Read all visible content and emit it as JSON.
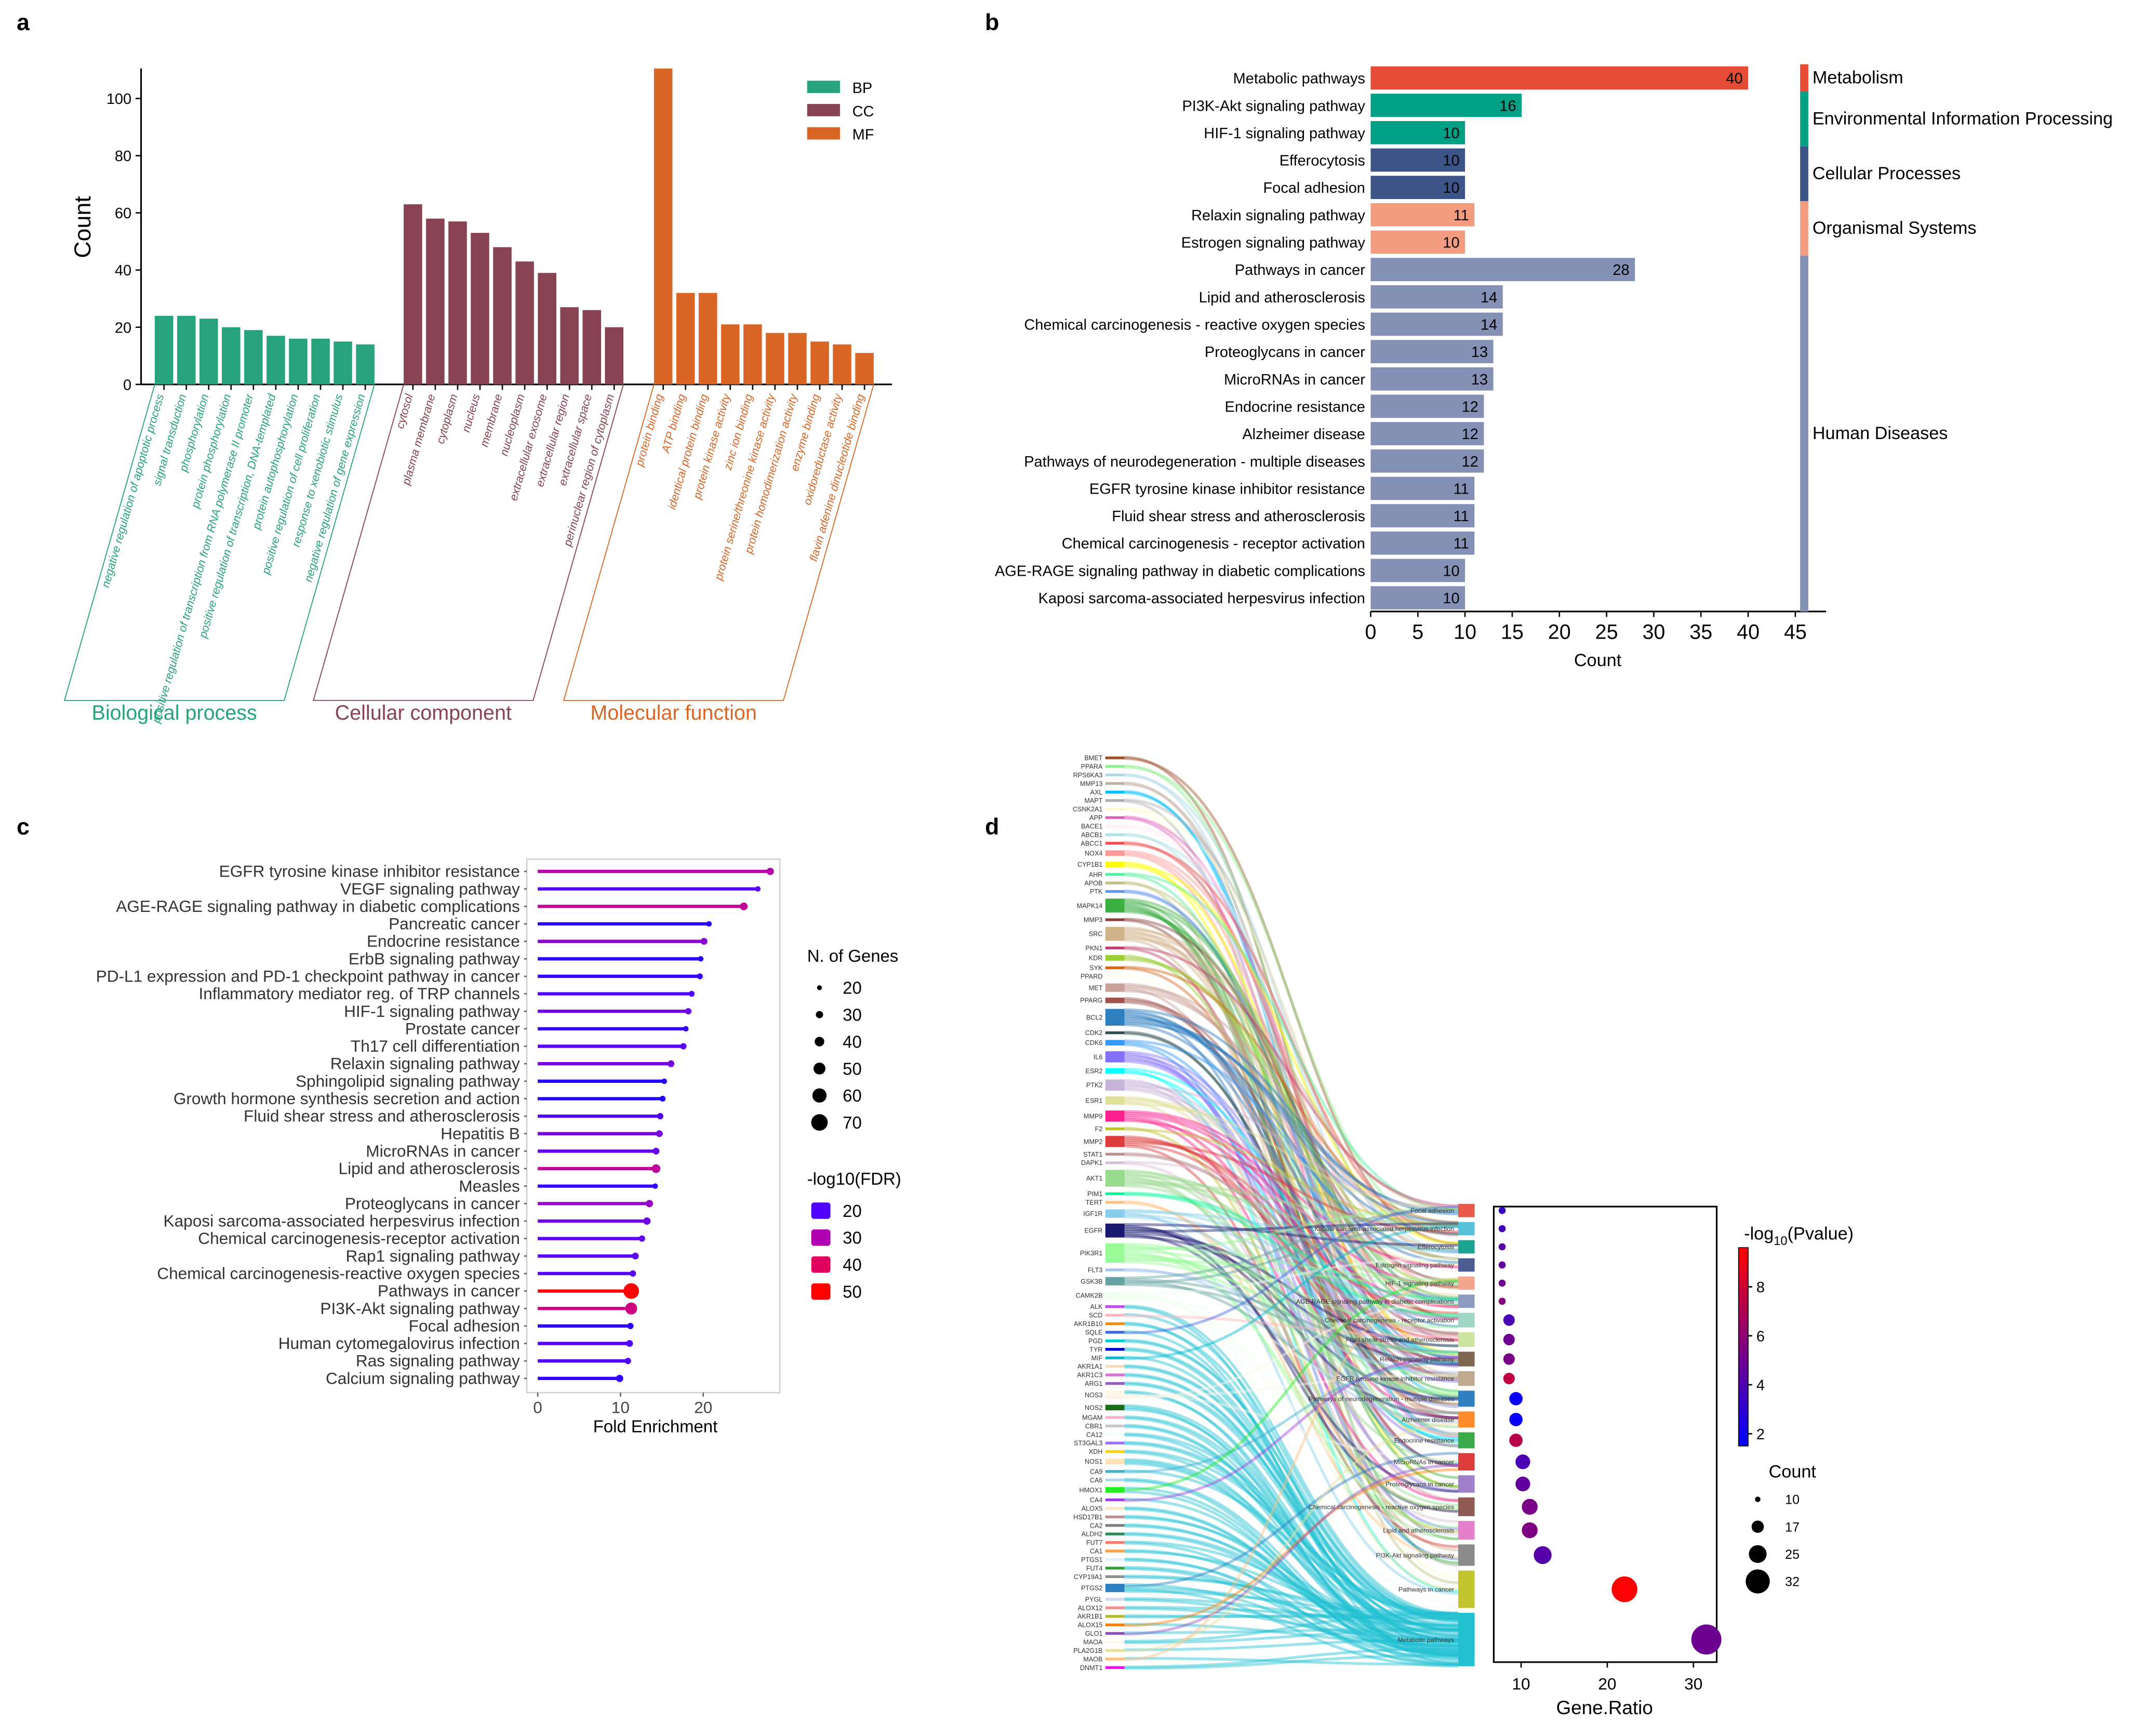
{
  "panel_labels": {
    "a": "a",
    "b": "b",
    "c": "c",
    "d": "d"
  },
  "chart_data": [
    {
      "id": "a",
      "type": "bar",
      "ylabel": "Count",
      "ylim": [
        0,
        110
      ],
      "yticks": [
        0,
        20,
        40,
        60,
        80,
        100
      ],
      "legend": [
        {
          "name": "BP",
          "color": "#26a37c"
        },
        {
          "name": "CC",
          "color": "#874352"
        },
        {
          "name": "MF",
          "color": "#d96626"
        }
      ],
      "legend_position": "top-right",
      "groups": [
        {
          "name": "Biological process",
          "key": "BP",
          "color": "#26a37c",
          "categories": [
            "negative regulation of apoptotic process",
            "signal transduction",
            "phosphorylation",
            "protein phosphorylation",
            "positive regulation of transcription from RNA polymerase II promoter",
            "positive regulation of transcription, DNA-templated",
            "protein autophosphorylation",
            "positive regulation of cell proliferation",
            "response to xenobiotic stimulus",
            "negative regulation of gene expression"
          ],
          "values": [
            24,
            24,
            23,
            20,
            19,
            17,
            16,
            16,
            15,
            14
          ]
        },
        {
          "name": "Cellular component",
          "key": "CC",
          "color": "#874352",
          "categories": [
            "cytosol",
            "plasma membrane",
            "cytoplasm",
            "nucleus",
            "membrane",
            "nucleoplasm",
            "extracellular exosome",
            "extracellular region",
            "extracellular space",
            "perinuclear region of cytoplasm"
          ],
          "values": [
            63,
            58,
            57,
            53,
            48,
            43,
            39,
            27,
            26,
            20
          ]
        },
        {
          "name": "Molecular function",
          "key": "MF",
          "color": "#d96626",
          "categories": [
            "protein binding",
            "ATP binding",
            "identical protein binding",
            "protein kinase activity",
            "zinc ion binding",
            "protein serine/threonine kinase activity",
            "protein homodimerization activity",
            "enzyme binding",
            "oxidoreductase activity",
            "flavin adenine dinucleotide binding"
          ],
          "values": [
            111,
            32,
            32,
            21,
            21,
            18,
            18,
            15,
            14,
            11
          ]
        }
      ]
    },
    {
      "id": "b",
      "type": "bar",
      "orientation": "horizontal",
      "xlabel": "Count",
      "xlim": [
        0,
        45
      ],
      "xticks": [
        0,
        5,
        10,
        15,
        20,
        25,
        30,
        35,
        40,
        45
      ],
      "categories": [
        "Metabolic pathways",
        "PI3K-Akt signaling pathway",
        "HIF-1 signaling pathway",
        "Efferocytosis",
        "Focal adhesion",
        "Relaxin signaling pathway",
        "Estrogen signaling pathway",
        "Pathways in cancer",
        "Lipid and atherosclerosis",
        "Chemical carcinogenesis - reactive oxygen species",
        "Proteoglycans in cancer",
        "MicroRNAs in cancer",
        "Endocrine resistance",
        "Alzheimer disease",
        "Pathways of neurodegeneration - multiple diseases",
        "EGFR tyrosine kinase inhibitor resistance",
        "Fluid shear stress and atherosclerosis",
        "Chemical carcinogenesis - receptor activation",
        "AGE-RAGE signaling pathway in diabetic complications",
        "Kaposi sarcoma-associated herpesvirus infection"
      ],
      "values": [
        40,
        16,
        10,
        10,
        10,
        11,
        10,
        28,
        14,
        14,
        13,
        13,
        12,
        12,
        12,
        11,
        11,
        11,
        10,
        10
      ],
      "classes": [
        {
          "name": "Metabolism",
          "start": 0,
          "count": 1,
          "color": "#e64b35"
        },
        {
          "name": "Environmental Information Processing",
          "start": 1,
          "count": 2,
          "color": "#00a087"
        },
        {
          "name": "Cellular Processes",
          "start": 3,
          "count": 2,
          "color": "#3c5488"
        },
        {
          "name": "Organismal Systems",
          "start": 5,
          "count": 2,
          "color": "#f39b7f"
        },
        {
          "name": "Human Diseases",
          "start": 7,
          "count": 13,
          "color": "#8491b4"
        }
      ]
    },
    {
      "id": "c",
      "type": "scatter",
      "subtype": "lollipop",
      "xlabel": "Fold Enrichment",
      "xlim": [
        0,
        29
      ],
      "xticks": [
        0,
        10,
        20
      ],
      "categories": [
        "EGFR tyrosine kinase inhibitor resistance",
        "VEGF signaling pathway",
        "AGE-RAGE signaling pathway in diabetic complications",
        "Pancreatic cancer",
        "Endocrine resistance",
        "ErbB signaling pathway",
        "PD-L1 expression and PD-1 checkpoint pathway in cancer",
        "Inflammatory mediator reg. of TRP channels",
        "HIF-1 signaling pathway",
        "Prostate cancer",
        "Th17 cell differentiation",
        "Relaxin signaling pathway",
        "Sphingolipid signaling pathway",
        "Growth hormone synthesis secretion and action",
        "Fluid shear stress and atherosclerosis",
        "Hepatitis B",
        "MicroRNAs in cancer",
        "Lipid and atherosclerosis",
        "Measles",
        "Proteoglycans in cancer",
        "Kaposi sarcoma-associated herpesvirus infection",
        "Chemical carcinogenesis-receptor activation",
        "Rap1 signaling pathway",
        "Chemical carcinogenesis-reactive oxygen species",
        "Pathways in cancer",
        "PI3K-Akt signaling pathway",
        "Focal adhesion",
        "Human cytomegalovirus infection",
        "Ras signaling pathway",
        "Calcium signaling pathway"
      ],
      "fold_enrichment": [
        28.1,
        26.6,
        24.9,
        20.7,
        20.1,
        19.7,
        19.6,
        18.6,
        18.2,
        17.9,
        17.6,
        16.1,
        15.3,
        15.1,
        14.8,
        14.7,
        14.3,
        14.3,
        14.2,
        13.5,
        13.2,
        12.6,
        11.8,
        11.5,
        11.3,
        11.3,
        11.2,
        11.1,
        10.9,
        9.9
      ],
      "n_genes": [
        30,
        18,
        32,
        20,
        28,
        22,
        24,
        24,
        26,
        22,
        26,
        28,
        22,
        24,
        26,
        28,
        28,
        36,
        22,
        30,
        30,
        26,
        28,
        26,
        66,
        50,
        26,
        28,
        26,
        30
      ],
      "neg_log10_fdr": [
        31,
        21,
        33,
        16,
        26,
        16,
        17,
        20,
        23,
        17,
        21,
        24,
        15,
        15,
        20,
        24,
        22,
        33,
        17,
        27,
        23,
        21,
        21,
        21,
        50,
        36,
        16,
        20,
        20,
        17
      ],
      "size_legend": {
        "title": "N. of Genes",
        "values": [
          20,
          30,
          40,
          50,
          60,
          70
        ]
      },
      "color_legend": {
        "title": "-log10(FDR)",
        "values": [
          20,
          30,
          40,
          50
        ],
        "colors": [
          "#5000ff",
          "#b000b0",
          "#e00060",
          "#ff0000"
        ]
      }
    },
    {
      "id": "d",
      "type": "scatter",
      "subtype": "sankey-dotplot",
      "xlabel": "Gene.Ratio",
      "xlim": [
        7,
        32
      ],
      "xticks": [
        10,
        20,
        30
      ],
      "genes": [
        {
          "name": "BMET",
          "w": 1,
          "c": "#a0522d"
        },
        {
          "name": "PPARA",
          "w": 1,
          "c": "#90ee90"
        },
        {
          "name": "RPS6KA3",
          "w": 1,
          "c": "#add8e6"
        },
        {
          "name": "MMP13",
          "w": 1,
          "c": "#c0b0a0"
        },
        {
          "name": "AXL",
          "w": 1,
          "c": "#00bfff"
        },
        {
          "name": "MAPT",
          "w": 1,
          "c": "#b0b0b0"
        },
        {
          "name": "CSNK2A1",
          "w": 1,
          "c": "#fffacd"
        },
        {
          "name": "APP",
          "w": 1,
          "c": "#e060c0"
        },
        {
          "name": "BACE1",
          "w": 1,
          "c": "#fff0f5"
        },
        {
          "name": "ABCB1",
          "w": 1,
          "c": "#b0e0e6"
        },
        {
          "name": "ABCC1",
          "w": 1,
          "c": "#f05050"
        },
        {
          "name": "NOX4",
          "w": 2,
          "c": "#ff9999"
        },
        {
          "name": "CYP1B1",
          "w": 2,
          "c": "#ffff00"
        },
        {
          "name": "AHR",
          "w": 1,
          "c": "#50f0a0"
        },
        {
          "name": "APOB",
          "w": 1,
          "c": "#c0c080"
        },
        {
          "name": "PTK",
          "w": 1,
          "c": "#6495ed"
        },
        {
          "name": "MAPK14",
          "w": 5,
          "c": "#3cb043"
        },
        {
          "name": "MMP3",
          "w": 1,
          "c": "#8b4040"
        },
        {
          "name": "SRC",
          "w": 5,
          "c": "#d2b48c"
        },
        {
          "name": "PKN1",
          "w": 1,
          "c": "#c04070"
        },
        {
          "name": "KDR",
          "w": 2,
          "c": "#9acd32"
        },
        {
          "name": "SYK",
          "w": 1,
          "c": "#d2691e"
        },
        {
          "name": "PPARD",
          "w": 1,
          "c": "#fffff0"
        },
        {
          "name": "MET",
          "w": 3,
          "c": "#c9a09a"
        },
        {
          "name": "PPARG",
          "w": 2,
          "c": "#a0524d"
        },
        {
          "name": "BCL2",
          "w": 6,
          "c": "#2e7fc0"
        },
        {
          "name": "CDK2",
          "w": 1,
          "c": "#2f4f4f"
        },
        {
          "name": "CDK6",
          "w": 2,
          "c": "#3399ff"
        },
        {
          "name": "IL6",
          "w": 4,
          "c": "#8470ff"
        },
        {
          "name": "ESR2",
          "w": 2,
          "c": "#00ffff"
        },
        {
          "name": "PTK2",
          "w": 4,
          "c": "#c8b4d8"
        },
        {
          "name": "ESR1",
          "w": 3,
          "c": "#e0e09a"
        },
        {
          "name": "MMP9",
          "w": 4,
          "c": "#ff2090"
        },
        {
          "name": "F2",
          "w": 1,
          "c": "#c0c030"
        },
        {
          "name": "MMP2",
          "w": 4,
          "c": "#dc3c3c"
        },
        {
          "name": "STAT1",
          "w": 1,
          "c": "#bc8f8f"
        },
        {
          "name": "DAPK1",
          "w": 1,
          "c": "#d8bfd8"
        },
        {
          "name": "AKT1",
          "w": 6,
          "c": "#98d98e"
        },
        {
          "name": "PIM1",
          "w": 1,
          "c": "#00fa9a"
        },
        {
          "name": "TERT",
          "w": 1,
          "c": "#ffc080"
        },
        {
          "name": "IGF1R",
          "w": 3,
          "c": "#87ceeb"
        },
        {
          "name": "EGFR",
          "w": 5,
          "c": "#191970"
        },
        {
          "name": "PIK3R1",
          "w": 7,
          "c": "#98fb98"
        },
        {
          "name": "FLT3",
          "w": 1,
          "c": "#a0c0f0"
        },
        {
          "name": "GSK3B",
          "w": 3,
          "c": "#66a3a0"
        },
        {
          "name": "CAMK2B",
          "w": 3,
          "c": "#f0fff0"
        },
        {
          "name": "ALK",
          "w": 1,
          "c": "#c050e0"
        },
        {
          "name": "SCD",
          "w": 1,
          "c": "#ffb6c1"
        },
        {
          "name": "AKR1B10",
          "w": 1,
          "c": "#ff8c00"
        },
        {
          "name": "SQLE",
          "w": 1,
          "c": "#4169e1"
        },
        {
          "name": "PGD",
          "w": 1,
          "c": "#00ced1"
        },
        {
          "name": "TYR",
          "w": 1,
          "c": "#0000cd"
        },
        {
          "name": "MIF",
          "w": 1,
          "c": "#00bcd4"
        },
        {
          "name": "AKR1A1",
          "w": 1,
          "c": "#f5deb3"
        },
        {
          "name": "AKR1C3",
          "w": 1,
          "c": "#da70d6"
        },
        {
          "name": "ARG1",
          "w": 1,
          "c": "#9060c0"
        },
        {
          "name": "NOS3",
          "w": 3,
          "c": "#fdf5e6"
        },
        {
          "name": "NOS2",
          "w": 2,
          "c": "#1a6e1a"
        },
        {
          "name": "MGAM",
          "w": 1,
          "c": "#ffb0d0"
        },
        {
          "name": "CBR1",
          "w": 1,
          "c": "#c8c8c8"
        },
        {
          "name": "CA12",
          "w": 1,
          "c": "#f0ffff"
        },
        {
          "name": "ST3GAL3",
          "w": 1,
          "c": "#a070ff"
        },
        {
          "name": "XDH",
          "w": 1,
          "c": "#ffd700"
        },
        {
          "name": "NOS1",
          "w": 2,
          "c": "#ffe4b5"
        },
        {
          "name": "CA9",
          "w": 1,
          "c": "#40b0d0"
        },
        {
          "name": "CA6",
          "w": 1,
          "c": "#b0d8f0"
        },
        {
          "name": "HMOX1",
          "w": 2,
          "c": "#22ee22"
        },
        {
          "name": "CA4",
          "w": 1,
          "c": "#a040e0"
        },
        {
          "name": "ALOX5",
          "w": 1,
          "c": "#ffe4c4"
        },
        {
          "name": "HSD17B1",
          "w": 1,
          "c": "#c09090"
        },
        {
          "name": "CA2",
          "w": 1,
          "c": "#808080"
        },
        {
          "name": "ALDH2",
          "w": 1,
          "c": "#2e8b57"
        },
        {
          "name": "FUT7",
          "w": 1,
          "c": "#f08070"
        },
        {
          "name": "CA1",
          "w": 1,
          "c": "#ffa040"
        },
        {
          "name": "PTGS1",
          "w": 1,
          "c": "#e0f0ff"
        },
        {
          "name": "FUT4",
          "w": 1,
          "c": "#32a032"
        },
        {
          "name": "CYP19A1",
          "w": 1,
          "c": "#909090"
        },
        {
          "name": "PTGS2",
          "w": 3,
          "c": "#2e7fc0"
        },
        {
          "name": "PYGL",
          "w": 1,
          "c": "#d0d8f0"
        },
        {
          "name": "ALOX12",
          "w": 1,
          "c": "#f09090"
        },
        {
          "name": "AKR1B1",
          "w": 1,
          "c": "#b8b830"
        },
        {
          "name": "ALOX15",
          "w": 1,
          "c": "#ff7f00"
        },
        {
          "name": "GLO1",
          "w": 1,
          "c": "#9050c0"
        },
        {
          "name": "MAOA",
          "w": 1,
          "c": "#fff8f0"
        },
        {
          "name": "PLA2G1B",
          "w": 1,
          "c": "#e8e0a0"
        },
        {
          "name": "MAOB",
          "w": 1,
          "c": "#ffc080"
        },
        {
          "name": "DNMT1",
          "w": 1,
          "c": "#ff00ff"
        }
      ],
      "pathways": [
        "Focal adhesion",
        "Kaposi sarcoma-associated herpesvirus infection",
        "Efferocytosis",
        "Estrogen signaling pathway",
        "HIF-1 signaling pathway",
        "AGE-RAGE signaling pathway in diabetic complications",
        "Chemical carcinogenesis - receptor activation",
        "Fluid shear stress and atherosclerosis",
        "Relaxin signaling pathway",
        "EGFR tyrosine kinase inhibitor resistance",
        "Pathways of neurodegeneration - multiple diseases",
        "Alzheimer disease",
        "Endocrine resistance",
        "MicroRNAs in cancer",
        "Proteoglycans in cancer",
        "Chemical carcinogenesis - reactive oxygen species",
        "Lipid and atherosclerosis",
        "PI3K-Akt signaling pathway",
        "Pathways in cancer",
        "Metabolic pathways"
      ],
      "pathway_colors": [
        "#e8594a",
        "#56c1d9",
        "#1aa38f",
        "#4a5c92",
        "#f3a58e",
        "#8c9bbf",
        "#9fd6c6",
        "#cde3a0",
        "#7f6650",
        "#bfa98e",
        "#2f7fc1",
        "#ff8c2a",
        "#3aaa4a",
        "#dc3c3c",
        "#a27fcb",
        "#8f5a50",
        "#e67fcb",
        "#8a8a8a",
        "#c4c431",
        "#22c1d2"
      ],
      "count": [
        10,
        10,
        10,
        10,
        10,
        10,
        11,
        11,
        11,
        11,
        12,
        12,
        12,
        13,
        13,
        14,
        14,
        16,
        28,
        40
      ],
      "gene_ratio": [
        7.8,
        7.8,
        7.8,
        7.8,
        7.8,
        7.8,
        8.6,
        8.6,
        8.6,
        8.6,
        9.4,
        9.4,
        9.4,
        10.2,
        10.2,
        11.0,
        11.0,
        12.5,
        22.0,
        31.5
      ],
      "neg_log10_pvalue": [
        3.3,
        3.6,
        4.3,
        4.6,
        5.0,
        5.6,
        3.8,
        5.0,
        5.3,
        7.6,
        1.8,
        1.8,
        7.3,
        3.9,
        4.6,
        5.3,
        5.5,
        4.3,
        9.5,
        5.0
      ],
      "colorbar": {
        "title_prefix": "-log",
        "title_sub": "10",
        "title_suffix": "(Pvalue)",
        "range": [
          1.5,
          9.6
        ],
        "ticks": [
          2,
          4,
          6,
          8
        ]
      },
      "size_legend": {
        "title": "Count",
        "values": [
          10,
          17,
          25,
          32
        ]
      }
    }
  ]
}
